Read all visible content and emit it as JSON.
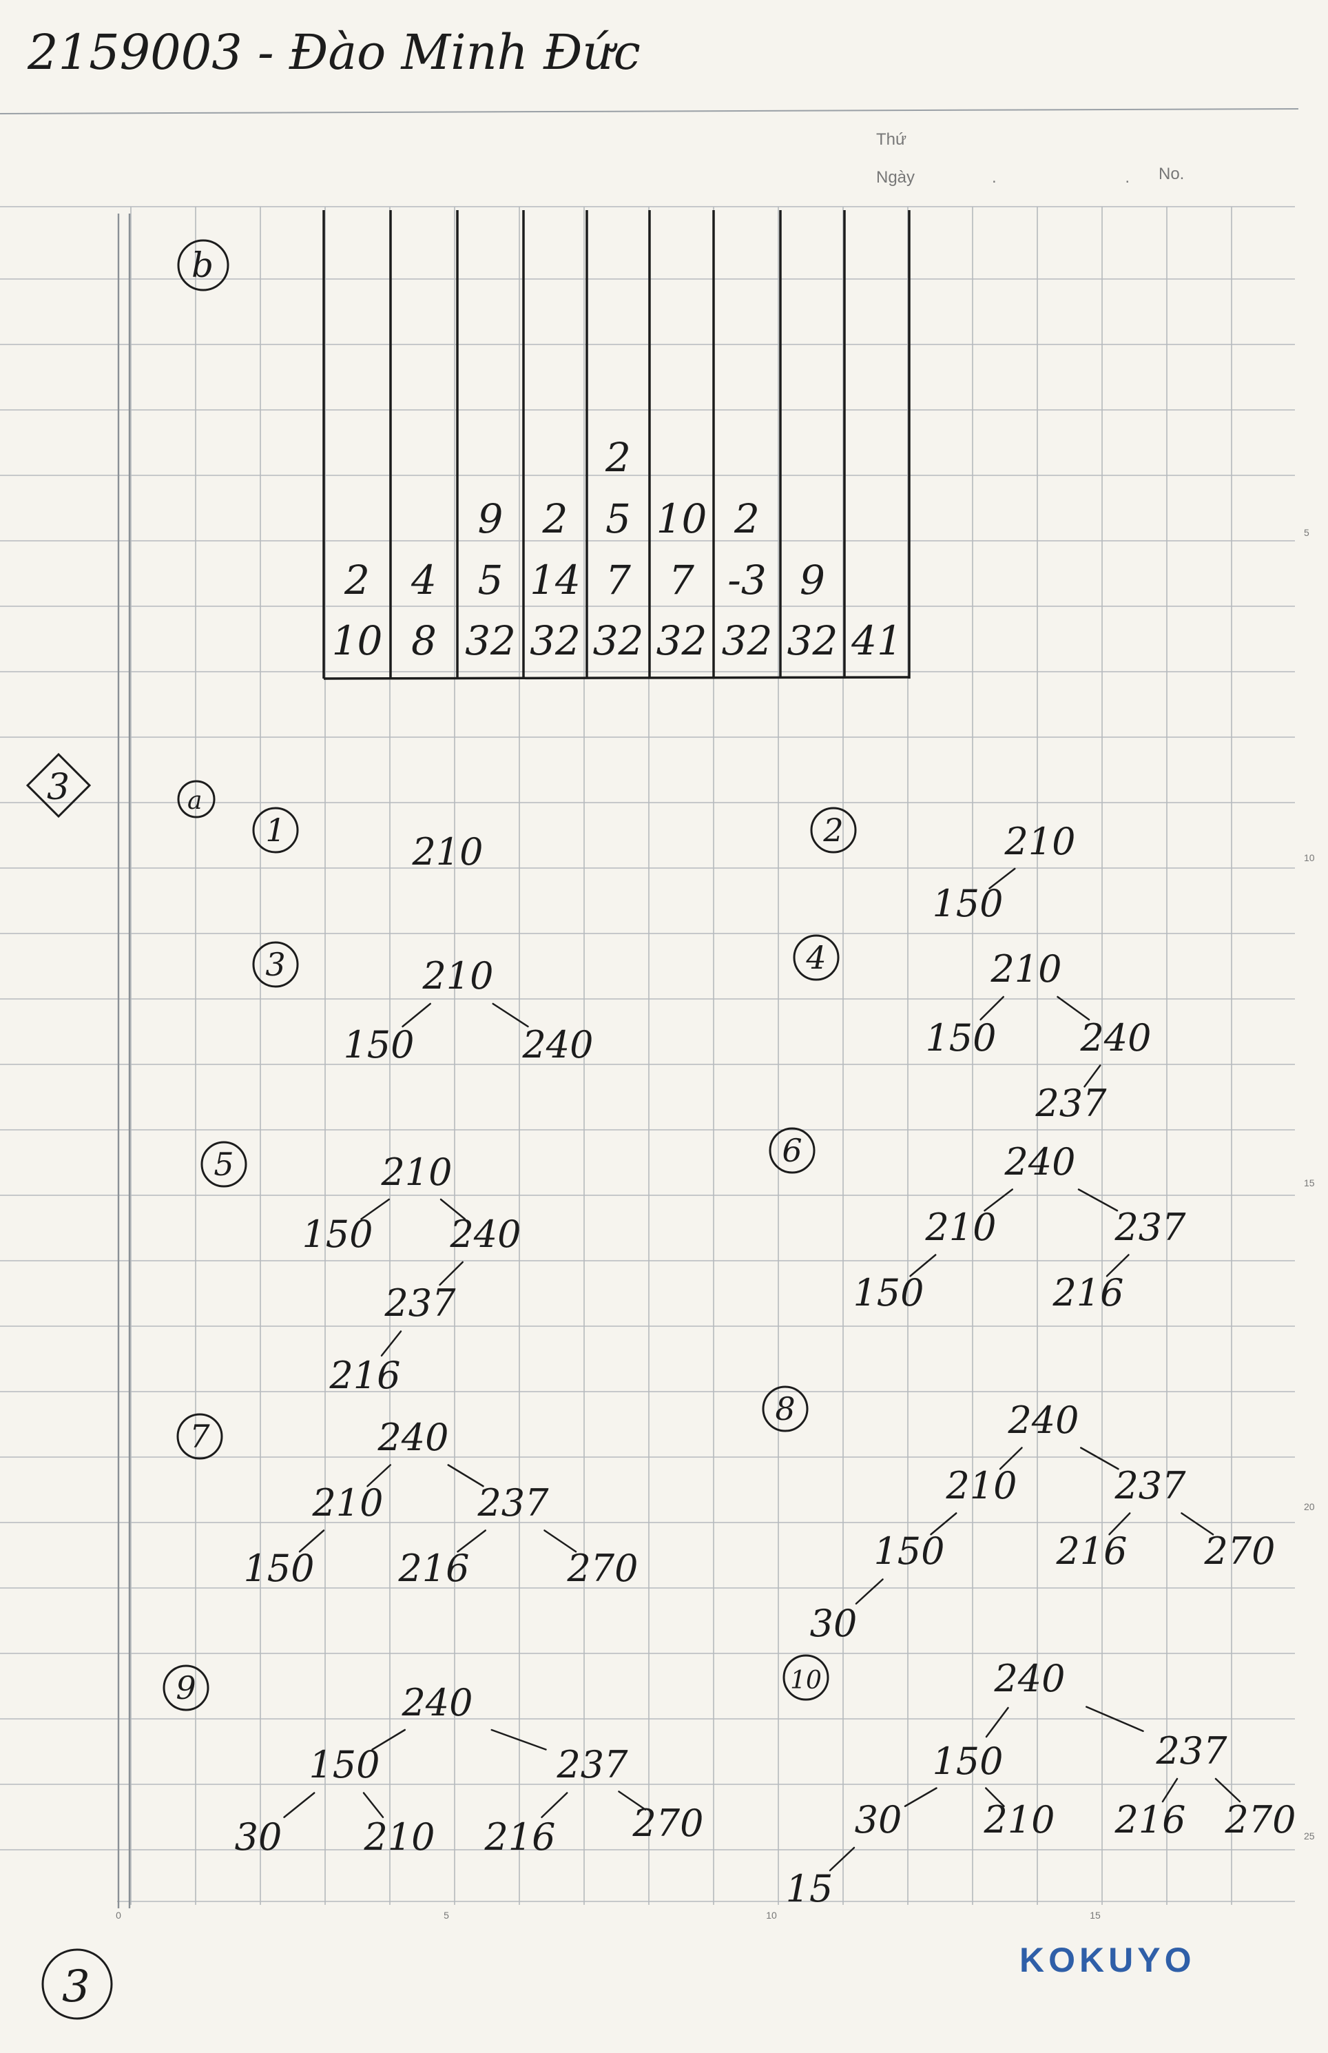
{
  "header": {
    "handwritten_title": "2159003 - Đào Minh Đức",
    "thu_label": "Thứ",
    "ngay_label": "Ngày",
    "date_dots": ". .",
    "no_label": "No."
  },
  "part_b": {
    "label": "b",
    "columns": [
      {
        "values": [
          "2",
          "10"
        ]
      },
      {
        "values": [
          "4",
          "8"
        ]
      },
      {
        "values": [
          "9",
          "5",
          "32"
        ]
      },
      {
        "values": [
          "2",
          "14",
          "32"
        ]
      },
      {
        "values": [
          "2",
          "5",
          "7",
          "32"
        ]
      },
      {
        "values": [
          "10",
          "7",
          "32"
        ]
      },
      {
        "values": [
          "2",
          "-3",
          "32"
        ]
      },
      {
        "values": [
          "9",
          "32"
        ]
      },
      {
        "values": [
          "41"
        ]
      }
    ]
  },
  "section_3": {
    "label": "3",
    "part_a_label": "a",
    "trees": [
      {
        "step": "1",
        "nodes": [
          "210"
        ]
      },
      {
        "step": "2",
        "nodes": [
          "210",
          "150"
        ]
      },
      {
        "step": "3",
        "nodes": [
          "210",
          "150",
          "240"
        ]
      },
      {
        "step": "4",
        "nodes": [
          "210",
          "150",
          "240",
          "237"
        ]
      },
      {
        "step": "5",
        "nodes": [
          "210",
          "150",
          "240",
          "237",
          "216"
        ]
      },
      {
        "step": "6",
        "nodes": [
          "240",
          "210",
          "237",
          "150",
          "216"
        ]
      },
      {
        "step": "7",
        "nodes": [
          "240",
          "210",
          "237",
          "150",
          "216",
          "270"
        ]
      },
      {
        "step": "8",
        "nodes": [
          "240",
          "210",
          "237",
          "150",
          "216",
          "270",
          "30"
        ]
      },
      {
        "step": "9",
        "nodes": [
          "240",
          "150",
          "237",
          "30",
          "210",
          "216",
          "270"
        ]
      },
      {
        "step": "10",
        "nodes": [
          "240",
          "150",
          "237",
          "30",
          "210",
          "216",
          "270",
          "15"
        ]
      }
    ]
  },
  "footer": {
    "page_number": "3",
    "brand": "KOKUYO",
    "brand_color": "#2f5fa8",
    "ruler_ticks": [
      "0",
      "5",
      "10",
      "15"
    ],
    "side_ticks": [
      "5",
      "10",
      "15",
      "20",
      "25"
    ]
  }
}
